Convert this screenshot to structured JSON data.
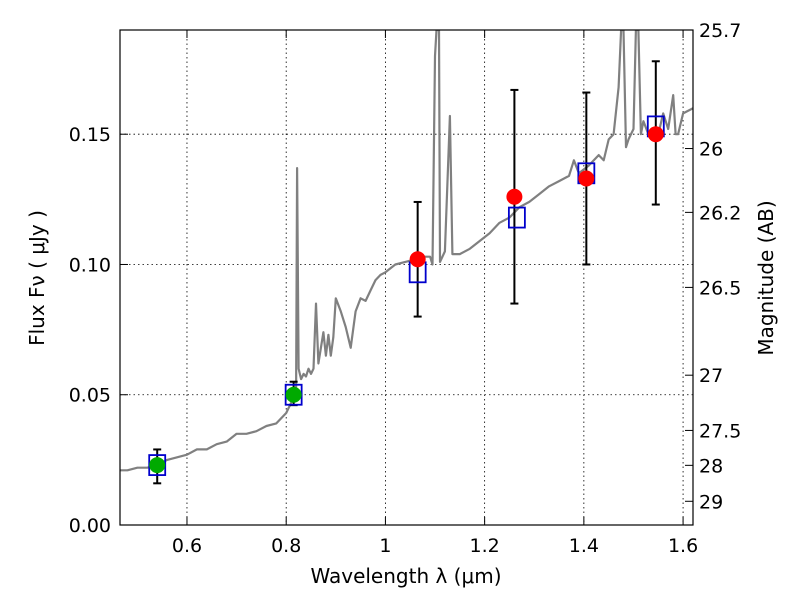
{
  "chart_data": {
    "type": "scatter",
    "xlabel": "Wavelength  λ (μm)",
    "ylabel": "Flux  Fν  ( μJy )",
    "ylabel_right": "Magnitude (AB)",
    "xlim": [
      0.465,
      1.62
    ],
    "ylim": [
      0.0,
      0.19
    ],
    "grid": true,
    "x_ticks": [
      {
        "value": 0.6,
        "label": "0.6"
      },
      {
        "value": 0.8,
        "label": "0.8"
      },
      {
        "value": 1.0,
        "label": "1"
      },
      {
        "value": 1.2,
        "label": "1.2"
      },
      {
        "value": 1.4,
        "label": "1.4"
      },
      {
        "value": 1.6,
        "label": "1.6"
      }
    ],
    "y_ticks": [
      {
        "value": 0.0,
        "label": "0.00"
      },
      {
        "value": 0.05,
        "label": "0.05"
      },
      {
        "value": 0.1,
        "label": "0.10"
      },
      {
        "value": 0.15,
        "label": "0.15"
      }
    ],
    "right_ticks": [
      {
        "flux": 0.19,
        "label": "25.7"
      },
      {
        "flux": 0.1445,
        "label": "26"
      },
      {
        "flux": 0.12,
        "label": "26.2"
      },
      {
        "flux": 0.0912,
        "label": "26.5"
      },
      {
        "flux": 0.0575,
        "label": "27"
      },
      {
        "flux": 0.0363,
        "label": "27.5"
      },
      {
        "flux": 0.0229,
        "label": "28"
      },
      {
        "flux": 0.0091,
        "label": "29"
      }
    ],
    "series": [
      {
        "name": "template-spectrum",
        "kind": "line",
        "color": "#808080",
        "points": [
          [
            0.465,
            0.021
          ],
          [
            0.48,
            0.021
          ],
          [
            0.5,
            0.022
          ],
          [
            0.52,
            0.022
          ],
          [
            0.54,
            0.023
          ],
          [
            0.56,
            0.025
          ],
          [
            0.58,
            0.026
          ],
          [
            0.6,
            0.027
          ],
          [
            0.62,
            0.029
          ],
          [
            0.64,
            0.029
          ],
          [
            0.66,
            0.031
          ],
          [
            0.68,
            0.032
          ],
          [
            0.7,
            0.035
          ],
          [
            0.72,
            0.035
          ],
          [
            0.74,
            0.036
          ],
          [
            0.76,
            0.038
          ],
          [
            0.78,
            0.039
          ],
          [
            0.79,
            0.041
          ],
          [
            0.8,
            0.043
          ],
          [
            0.805,
            0.045
          ],
          [
            0.81,
            0.047
          ],
          [
            0.815,
            0.048
          ],
          [
            0.818,
            0.05
          ],
          [
            0.82,
            0.052
          ],
          [
            0.822,
            0.137
          ],
          [
            0.825,
            0.06
          ],
          [
            0.83,
            0.056
          ],
          [
            0.835,
            0.058
          ],
          [
            0.84,
            0.057
          ],
          [
            0.845,
            0.06
          ],
          [
            0.85,
            0.058
          ],
          [
            0.855,
            0.06
          ],
          [
            0.86,
            0.085
          ],
          [
            0.865,
            0.062
          ],
          [
            0.87,
            0.068
          ],
          [
            0.875,
            0.074
          ],
          [
            0.88,
            0.065
          ],
          [
            0.885,
            0.073
          ],
          [
            0.89,
            0.065
          ],
          [
            0.895,
            0.072
          ],
          [
            0.9,
            0.087
          ],
          [
            0.91,
            0.082
          ],
          [
            0.92,
            0.076
          ],
          [
            0.93,
            0.068
          ],
          [
            0.94,
            0.082
          ],
          [
            0.95,
            0.087
          ],
          [
            0.96,
            0.086
          ],
          [
            0.97,
            0.09
          ],
          [
            0.98,
            0.094
          ],
          [
            0.99,
            0.096
          ],
          [
            1.0,
            0.097
          ],
          [
            1.02,
            0.1
          ],
          [
            1.04,
            0.101
          ],
          [
            1.06,
            0.102
          ],
          [
            1.08,
            0.103
          ],
          [
            1.09,
            0.103
          ],
          [
            1.095,
            0.1
          ],
          [
            1.1,
            0.18
          ],
          [
            1.103,
            0.19
          ],
          [
            1.108,
            0.19
          ],
          [
            1.11,
            0.101
          ],
          [
            1.12,
            0.105
          ],
          [
            1.13,
            0.157
          ],
          [
            1.135,
            0.104
          ],
          [
            1.15,
            0.104
          ],
          [
            1.17,
            0.106
          ],
          [
            1.19,
            0.109
          ],
          [
            1.21,
            0.112
          ],
          [
            1.23,
            0.116
          ],
          [
            1.25,
            0.118
          ],
          [
            1.27,
            0.122
          ],
          [
            1.29,
            0.124
          ],
          [
            1.31,
            0.127
          ],
          [
            1.33,
            0.13
          ],
          [
            1.35,
            0.132
          ],
          [
            1.37,
            0.134
          ],
          [
            1.38,
            0.14
          ],
          [
            1.39,
            0.135
          ],
          [
            1.41,
            0.138
          ],
          [
            1.43,
            0.142
          ],
          [
            1.44,
            0.14
          ],
          [
            1.45,
            0.148
          ],
          [
            1.46,
            0.15
          ],
          [
            1.47,
            0.168
          ],
          [
            1.475,
            0.19
          ],
          [
            1.48,
            0.19
          ],
          [
            1.485,
            0.145
          ],
          [
            1.49,
            0.148
          ],
          [
            1.5,
            0.152
          ],
          [
            1.505,
            0.19
          ],
          [
            1.51,
            0.19
          ],
          [
            1.515,
            0.15
          ],
          [
            1.52,
            0.155
          ],
          [
            1.53,
            0.15
          ],
          [
            1.54,
            0.152
          ],
          [
            1.55,
            0.15
          ],
          [
            1.56,
            0.158
          ],
          [
            1.57,
            0.152
          ],
          [
            1.58,
            0.165
          ],
          [
            1.585,
            0.15
          ],
          [
            1.59,
            0.15
          ],
          [
            1.6,
            0.158
          ],
          [
            1.62,
            0.16
          ]
        ]
      },
      {
        "name": "model-bands",
        "kind": "open-square",
        "color": "#0000cc",
        "points": [
          [
            0.54,
            0.023
          ],
          [
            0.815,
            0.05
          ],
          [
            1.065,
            0.097
          ],
          [
            1.265,
            0.118
          ],
          [
            1.405,
            0.135
          ],
          [
            1.545,
            0.153
          ]
        ]
      },
      {
        "name": "observed-optical",
        "kind": "filled-circle",
        "color": "#00aa00",
        "points": [
          {
            "x": 0.54,
            "y": 0.023,
            "ylo": 0.016,
            "yhi": 0.029
          },
          {
            "x": 0.815,
            "y": 0.05,
            "ylo": 0.046,
            "yhi": 0.055
          }
        ]
      },
      {
        "name": "observed-nir",
        "kind": "filled-circle",
        "color": "#ff0000",
        "points": [
          {
            "x": 1.065,
            "y": 0.102,
            "ylo": 0.08,
            "yhi": 0.124
          },
          {
            "x": 1.26,
            "y": 0.126,
            "ylo": 0.085,
            "yhi": 0.167
          },
          {
            "x": 1.405,
            "y": 0.133,
            "ylo": 0.1,
            "yhi": 0.166
          },
          {
            "x": 1.545,
            "y": 0.15,
            "ylo": 0.123,
            "yhi": 0.178
          }
        ]
      }
    ]
  }
}
